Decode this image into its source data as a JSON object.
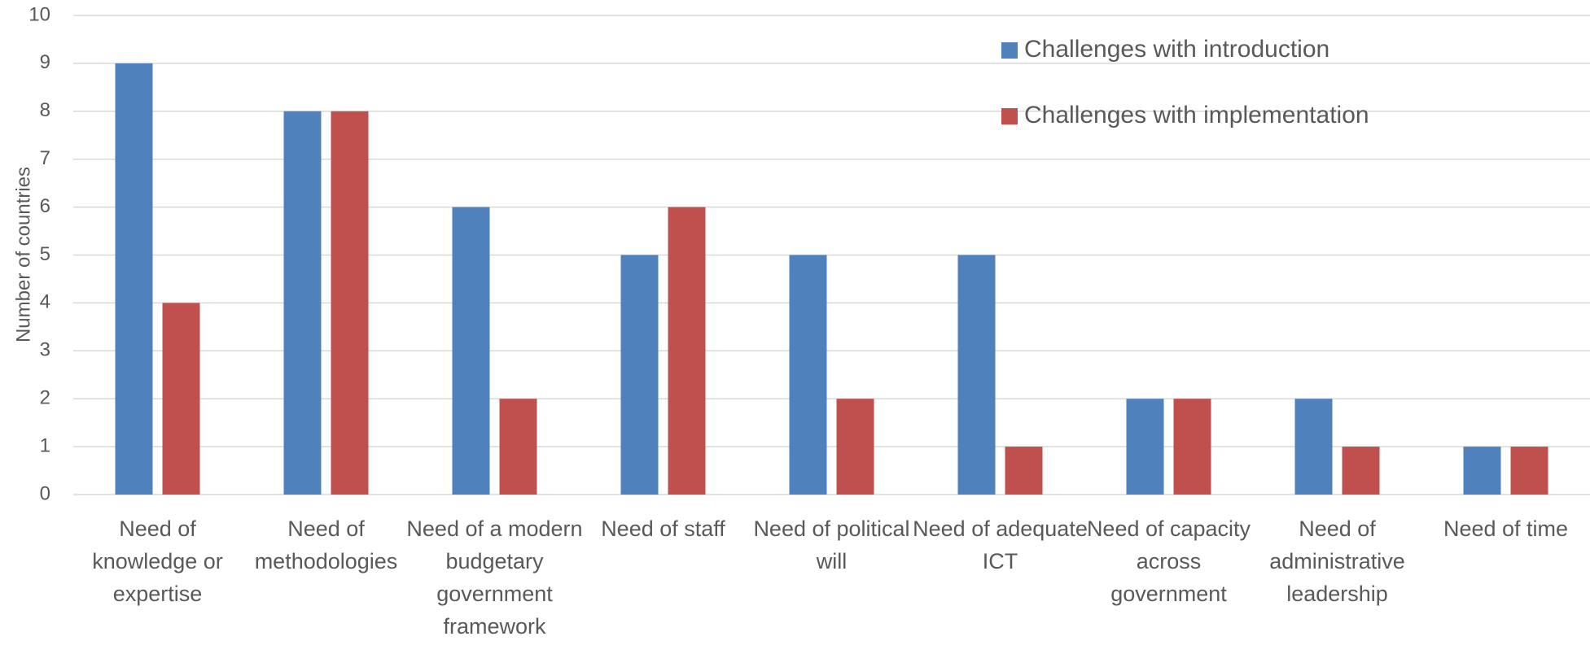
{
  "chart_data": {
    "type": "bar",
    "categories": [
      "Need of knowledge or expertise",
      "Need of methodologies",
      "Need of a modern budgetary government framework",
      "Need of staff",
      "Need of political will",
      "Need of adequate ICT",
      "Need of capacity across government",
      "Need of administrative leadership",
      "Need of time"
    ],
    "series": [
      {
        "name": "Challenges with introduction",
        "color": "#4f81bd",
        "values": [
          9,
          8,
          6,
          5,
          5,
          5,
          2,
          2,
          1
        ]
      },
      {
        "name": "Challenges with implementation",
        "color": "#c0504d",
        "values": [
          4,
          8,
          2,
          6,
          2,
          1,
          2,
          1,
          1
        ]
      }
    ],
    "y_label": "Number of countries",
    "ylim": [
      0,
      10
    ],
    "yticks": [
      0,
      1,
      2,
      3,
      4,
      5,
      6,
      7,
      8,
      9,
      10
    ],
    "grid": true,
    "legend": "top-right"
  }
}
